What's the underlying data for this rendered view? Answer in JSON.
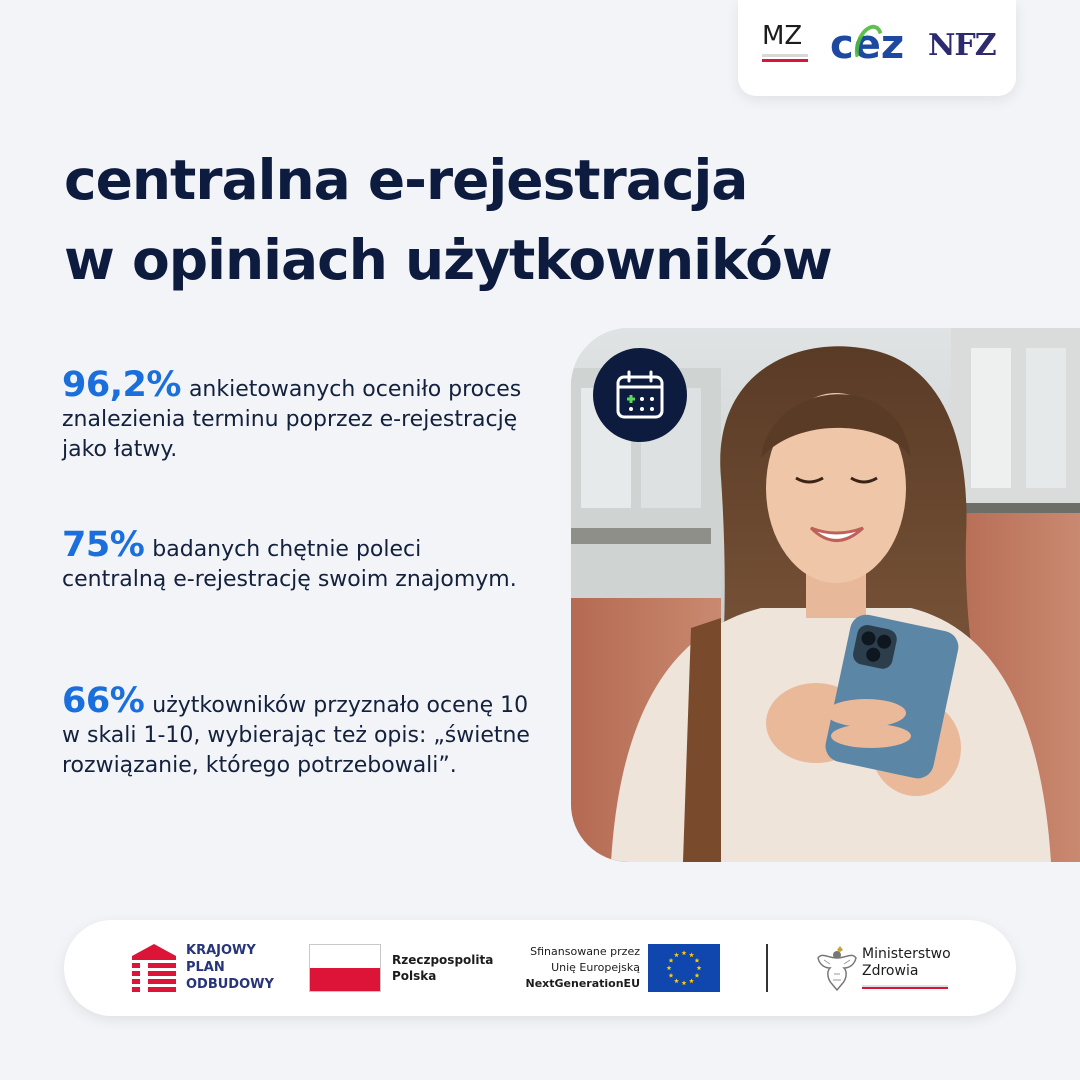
{
  "header": {
    "logos": {
      "mz": "MZ",
      "cez": "cez",
      "nfz": "NFZ"
    }
  },
  "title": {
    "line1": "centralna e-rejestracja",
    "line2": "w opiniach użytkowników"
  },
  "stats": [
    {
      "value": "96,2%",
      "text": "ankietowanych oceniło proces znalezienia terminu poprzez e-rejestrację jako łatwy."
    },
    {
      "value": "75%",
      "text": "badanych chętnie poleci centralną e-rejestrację swoim znajomym."
    },
    {
      "value": "66%",
      "text": "użytkowników przyznało ocenę 10 w skali 1-10, wybierając też opis: „świetne rozwiązanie, którego potrzebowali”."
    }
  ],
  "photo": {
    "badge_icon": "calendar-plus-icon"
  },
  "footer": {
    "kpo": {
      "line1": "KRAJOWY",
      "line2": "PLAN",
      "line3": "ODBUDOWY"
    },
    "rp": {
      "line1": "Rzeczpospolita",
      "line2": "Polska"
    },
    "eu": {
      "line1": "Sfinansowane przez",
      "line2": "Unię Europejską",
      "line3": "NextGenerationEU"
    },
    "ministry": {
      "line1": "Ministerstwo",
      "line2": "Zdrowia"
    }
  },
  "colors": {
    "navy": "#0d1b3e",
    "accent_blue": "#1a6fdc",
    "background": "#f2f4f7",
    "polish_red": "#dc1437",
    "eu_blue": "#0f47af",
    "eu_gold": "#ffcc00",
    "cez_green": "#4dbb3c",
    "badge_plus_green": "#5cd65c"
  }
}
